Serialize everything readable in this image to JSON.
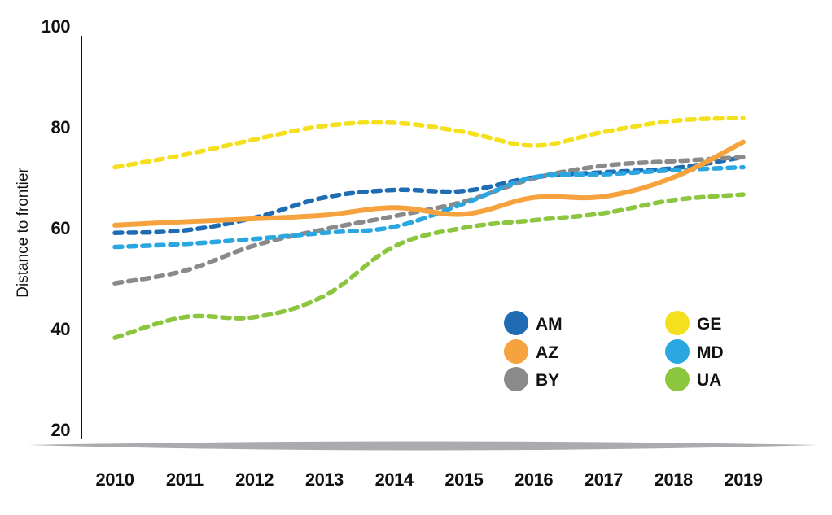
{
  "chart_data": {
    "type": "line",
    "title": "",
    "xlabel": "",
    "ylabel": "Distance to frontier",
    "x": [
      2010,
      2011,
      2012,
      2013,
      2014,
      2015,
      2016,
      2017,
      2018,
      2019
    ],
    "ylim": [
      20,
      100
    ],
    "yticks": [
      20,
      40,
      60,
      80,
      100
    ],
    "grid": false,
    "legend_position": "bottom-right",
    "series": [
      {
        "name": "AM",
        "color": "#1f6cb3",
        "style": "dashed",
        "values": [
          59,
          59.5,
          62,
          66,
          67.5,
          67.3,
          70,
          71,
          71.8,
          74
        ]
      },
      {
        "name": "AZ",
        "color": "#f6a23e",
        "style": "solid",
        "values": [
          60.5,
          61.2,
          61.8,
          62.5,
          64,
          62.7,
          66,
          66.2,
          70,
          77
        ]
      },
      {
        "name": "BY",
        "color": "#8a8a8a",
        "style": "dashed",
        "values": [
          49,
          51.5,
          56.5,
          59.7,
          62.3,
          65.2,
          69.8,
          72.3,
          73.2,
          74
        ]
      },
      {
        "name": "GE",
        "color": "#f4e01c",
        "style": "dashed",
        "values": [
          72,
          74.5,
          77.5,
          80.2,
          80.8,
          79,
          76.3,
          79,
          81.2,
          81.8
        ]
      },
      {
        "name": "MD",
        "color": "#2aa6e0",
        "style": "dashed",
        "values": [
          56.2,
          56.8,
          57.8,
          59,
          60.2,
          64.8,
          70,
          70.6,
          71.4,
          72
        ]
      },
      {
        "name": "UA",
        "color": "#8cc63f",
        "style": "dashed",
        "values": [
          38.2,
          42.3,
          42.3,
          46.5,
          56.3,
          60,
          61.5,
          62.9,
          65.5,
          66.6
        ]
      }
    ]
  }
}
